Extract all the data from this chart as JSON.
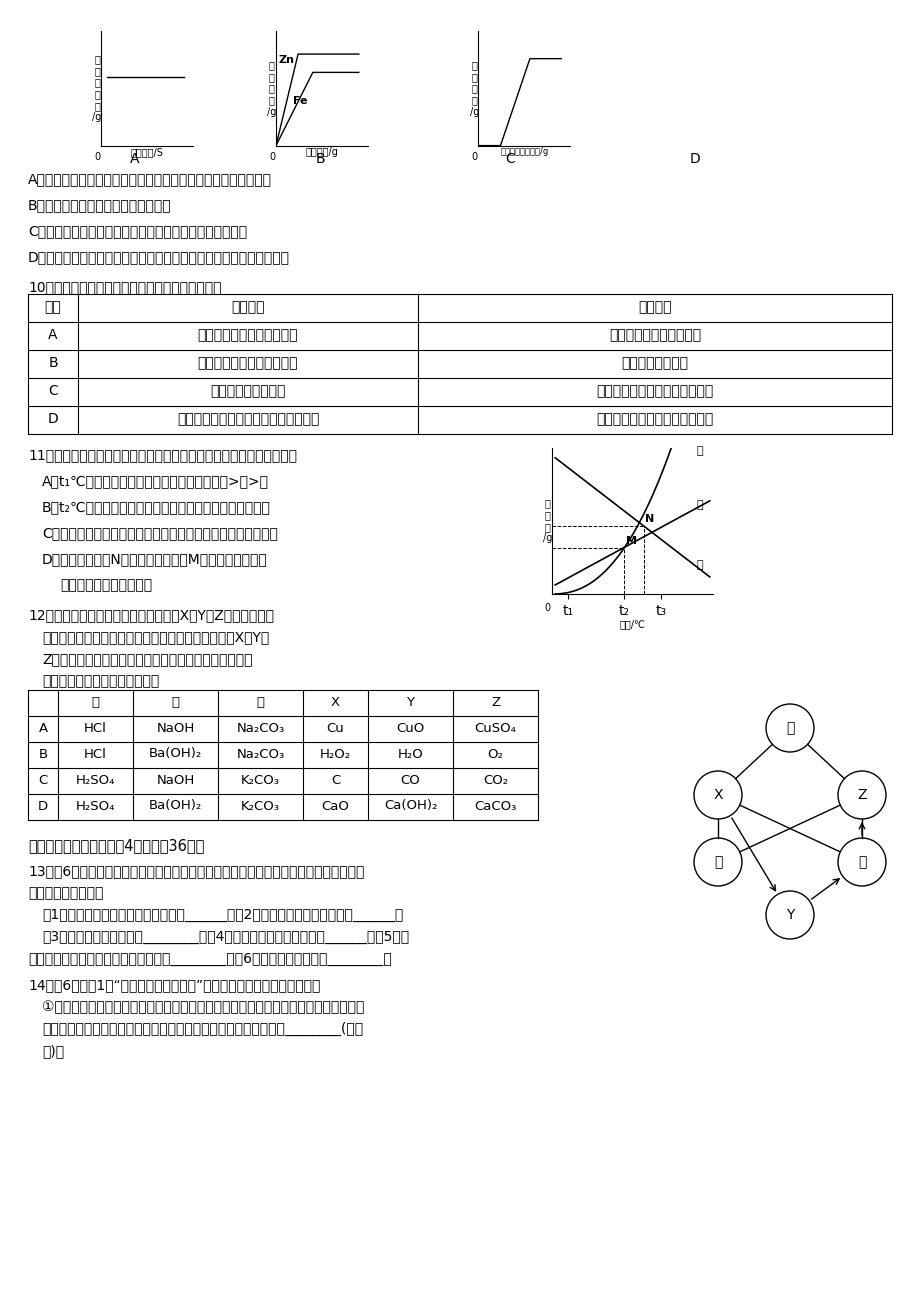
{
  "bg_color": "#ffffff",
  "table10_headers": [
    "选项",
    "实验目的",
    "实验方案"
  ],
  "table10_rows": [
    [
      "A",
      "除去鐵粉中混有的少量銀粉",
      "用足量稀盐酸溢解后过滤"
    ],
    [
      "B",
      "鉴别纯羊毛织品和涤纶织品",
      "取样灸烧后闻气味"
    ],
    [
      "C",
      "证明分子在不断运动",
      "将一滴红墨水滴入一杯纯净水中"
    ],
    [
      "D",
      "收集二氧化碳时，检验集气瓶是否集满",
      "用一根燃着的木条放在集气瓶口"
    ]
  ],
  "table12_headers": [
    "",
    "甲",
    "乙",
    "丙",
    "X",
    "Y",
    "Z"
  ],
  "table12_rows": [
    [
      "A",
      "HCl",
      "NaOH",
      "Na₂CO₃",
      "Cu",
      "CuO",
      "CuSO₄"
    ],
    [
      "B",
      "HCl",
      "Ba(OH)₂",
      "Na₂CO₃",
      "H₂O₂",
      "H₂O",
      "O₂"
    ],
    [
      "C",
      "H₂SO₄",
      "NaOH",
      "K₂CO₃",
      "C",
      "CO",
      "CO₂"
    ],
    [
      "D",
      "H₂SO₄",
      "Ba(OH)₂",
      "K₂CO₃",
      "CaO",
      "Ca(OH)₂",
      "CaCO₃"
    ]
  ]
}
